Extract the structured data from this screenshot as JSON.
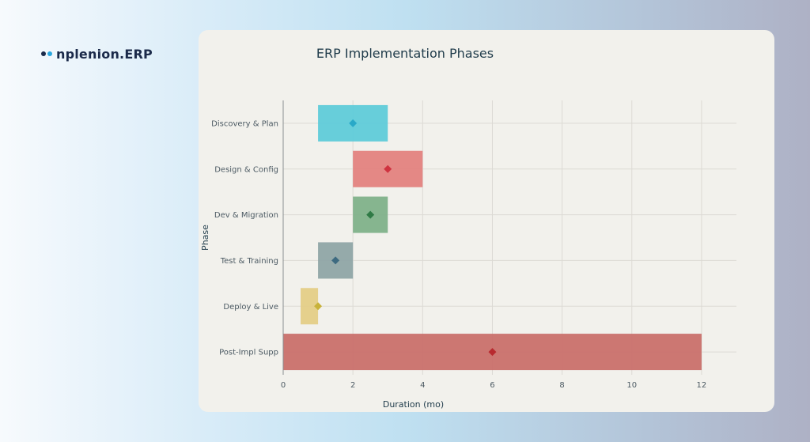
{
  "brand": {
    "name": "nplenion.ERP",
    "dot_colors": [
      "#1b2a4a",
      "#2aa7df"
    ]
  },
  "chart_data": {
    "type": "bar",
    "orientation": "horizontal",
    "title": "ERP Implementation Phases",
    "xlabel": "Duration (mo)",
    "ylabel": "Phase",
    "xlim": [
      0,
      13
    ],
    "xticks": [
      0,
      2,
      4,
      6,
      8,
      10,
      12
    ],
    "grid": true,
    "categories": [
      "Discovery & Plan",
      "Design & Config",
      "Dev & Migration",
      "Test & Training",
      "Deploy & Live",
      "Post-Impl Supp"
    ],
    "bars": [
      {
        "start": 1,
        "end": 3,
        "marker": 2,
        "color": "#5fcbd9",
        "marker_color": "#29a9c8"
      },
      {
        "start": 2,
        "end": 4,
        "marker": 3,
        "color": "#e3827f",
        "marker_color": "#cf3340"
      },
      {
        "start": 2,
        "end": 3,
        "marker": 2.5,
        "color": "#7fb18a",
        "marker_color": "#2f7a45"
      },
      {
        "start": 1,
        "end": 2,
        "marker": 1.5,
        "color": "#8fa5a7",
        "marker_color": "#3d6a80"
      },
      {
        "start": 0.5,
        "end": 1,
        "marker": 1,
        "color": "#e4cd87",
        "marker_color": "#c8b23a"
      },
      {
        "start": 0,
        "end": 12,
        "marker": 6,
        "color": "#c9706c",
        "marker_color": "#b82a2f"
      }
    ]
  }
}
